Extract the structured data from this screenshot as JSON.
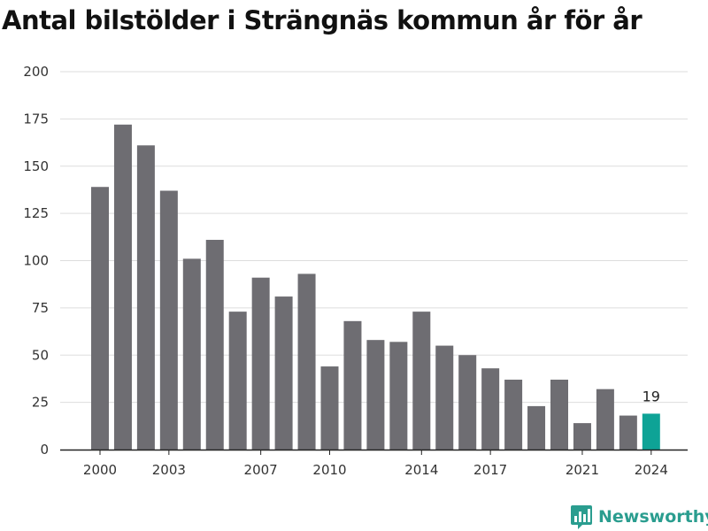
{
  "title": "Antal bilstölder i Strängnäs kommun år för år",
  "brand": {
    "name": "Newsworthy",
    "icon": "bar-chart-pin-icon"
  },
  "colors": {
    "bar": "#6e6d72",
    "highlight": "#0ea396",
    "grid": "#dddddd",
    "axis": "#222222",
    "brand": "#2a9d8f"
  },
  "chart_data": {
    "type": "bar",
    "title": "Antal bilstölder i Strängnäs kommun år för år",
    "xlabel": "",
    "ylabel": "",
    "x": [
      2000,
      2001,
      2002,
      2003,
      2004,
      2005,
      2006,
      2007,
      2008,
      2009,
      2010,
      2011,
      2012,
      2013,
      2014,
      2015,
      2016,
      2017,
      2018,
      2019,
      2020,
      2021,
      2022,
      2023,
      2024
    ],
    "values": [
      139,
      172,
      161,
      137,
      101,
      111,
      73,
      91,
      81,
      93,
      44,
      68,
      58,
      57,
      73,
      55,
      50,
      43,
      37,
      23,
      37,
      14,
      32,
      18,
      19
    ],
    "highlight_index": 24,
    "data_labels": [
      {
        "index": 24,
        "text": "19"
      }
    ],
    "ylim": [
      0,
      200
    ],
    "yticks": [
      0,
      25,
      50,
      75,
      100,
      125,
      150,
      175,
      200
    ],
    "xtick_labels": [
      "2000",
      "2003",
      "2007",
      "2010",
      "2014",
      "2017",
      "2021",
      "2024"
    ],
    "grid": true,
    "legend": "none"
  }
}
